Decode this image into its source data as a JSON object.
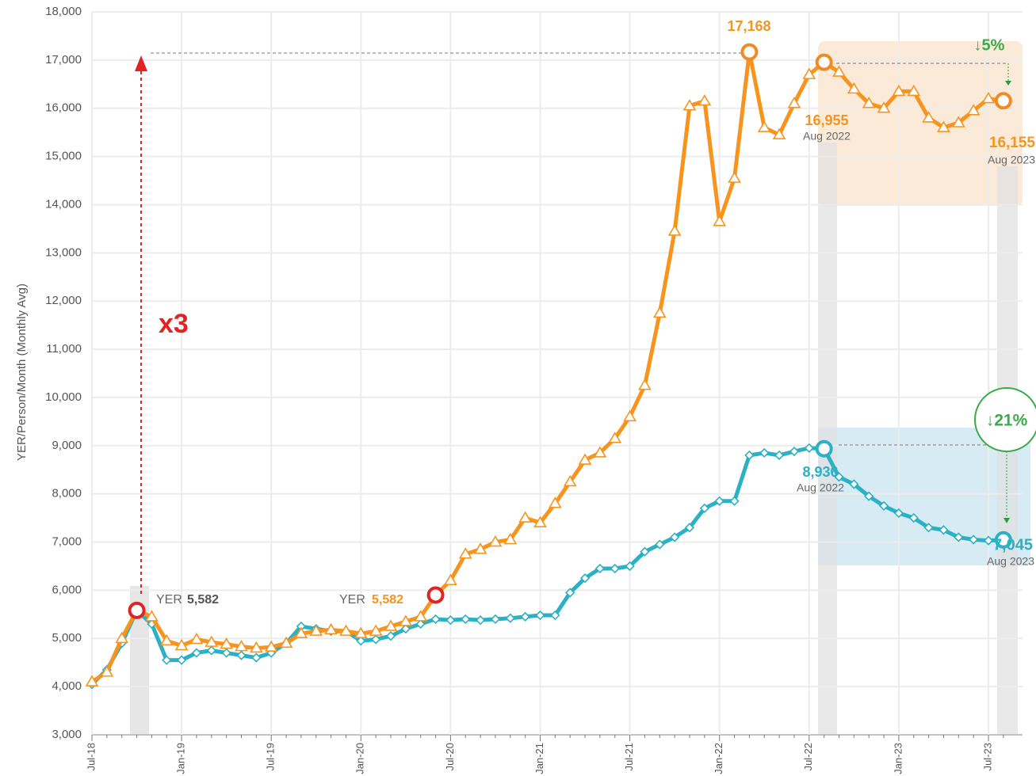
{
  "chart_data": {
    "type": "line",
    "y_label": "YER/Person/Month (Monthly Avg)",
    "categories": [
      "Jul-18",
      null,
      null,
      null,
      null,
      null,
      "Jan-19",
      null,
      null,
      null,
      null,
      null,
      "Jul-19",
      null,
      null,
      null,
      null,
      null,
      "Jan-20",
      null,
      null,
      null,
      null,
      null,
      "Jul-20",
      null,
      null,
      null,
      null,
      null,
      "Jan-21",
      null,
      null,
      null,
      null,
      null,
      "Jul-21",
      null,
      null,
      null,
      null,
      null,
      "Jan-22",
      null,
      null,
      null,
      null,
      null,
      "Jul-22",
      null,
      null,
      null,
      null,
      null,
      "Jan-23",
      null,
      null,
      null,
      null,
      null,
      "Jul-23",
      null
    ],
    "series": [
      {
        "color": "#f7941d",
        "marker": "triangle",
        "values": [
          4100,
          4300,
          5000,
          5582,
          5450,
          4950,
          4850,
          4980,
          4920,
          4880,
          4830,
          4800,
          4820,
          4900,
          5100,
          5150,
          5180,
          5150,
          5100,
          5150,
          5250,
          5350,
          5450,
          5900,
          6200,
          6750,
          6850,
          7000,
          7050,
          7500,
          7400,
          7800,
          8250,
          8700,
          8850,
          9150,
          9600,
          10250,
          11750,
          13450,
          16050,
          16150,
          13650,
          14550,
          17168,
          15600,
          15450,
          16100,
          16700,
          16955,
          16750,
          16400,
          16100,
          16000,
          16350,
          16350,
          15800,
          15600,
          15700,
          15950,
          16200,
          16155
        ]
      },
      {
        "color": "#2bb0c4",
        "marker": "diamond",
        "values": [
          4050,
          4350,
          4900,
          5582,
          5300,
          4550,
          4550,
          4700,
          4750,
          4700,
          4650,
          4600,
          4700,
          4900,
          5250,
          5200,
          5150,
          5150,
          4950,
          4980,
          5050,
          5200,
          5300,
          5400,
          5380,
          5400,
          5380,
          5400,
          5420,
          5450,
          5480,
          5480,
          5950,
          6250,
          6450,
          6450,
          6500,
          6800,
          6950,
          7100,
          7300,
          7700,
          7850,
          7850,
          8800,
          8850,
          8800,
          8880,
          8950,
          8936,
          8350,
          8200,
          7950,
          7750,
          7600,
          7500,
          7300,
          7250,
          7100,
          7050,
          7030,
          7045
        ]
      }
    ],
    "ylim": [
      3000,
      18000
    ],
    "yticks": [
      {
        "value": 3000,
        "label": "3,000"
      },
      {
        "value": 4000,
        "label": "4,000"
      },
      {
        "value": 5000,
        "label": "5,000"
      },
      {
        "value": 6000,
        "label": "6,000"
      },
      {
        "value": 7000,
        "label": "7,000"
      },
      {
        "value": 8000,
        "label": "8,000"
      },
      {
        "value": 9000,
        "label": "9,000"
      },
      {
        "value": 10000,
        "label": "10,000"
      },
      {
        "value": 11000,
        "label": "11,000"
      },
      {
        "value": 12000,
        "label": "12,000"
      },
      {
        "value": 13000,
        "label": "13,000"
      },
      {
        "value": 14000,
        "label": "14,000"
      },
      {
        "value": 15000,
        "label": "15,000"
      },
      {
        "value": 16000,
        "label": "16,000"
      },
      {
        "value": 17000,
        "label": "17,000"
      },
      {
        "value": 18000,
        "label": "18,000"
      }
    ],
    "grid": true,
    "annotations": [
      "17,168",
      "↓5%",
      "16,955",
      "Aug 2022",
      "16,155",
      "Aug 2023",
      "↓21%",
      "8,936",
      "Aug 2022",
      "7,045",
      "Aug 2023",
      "x3",
      "YER",
      "5,582",
      "YER",
      "5,582"
    ]
  }
}
